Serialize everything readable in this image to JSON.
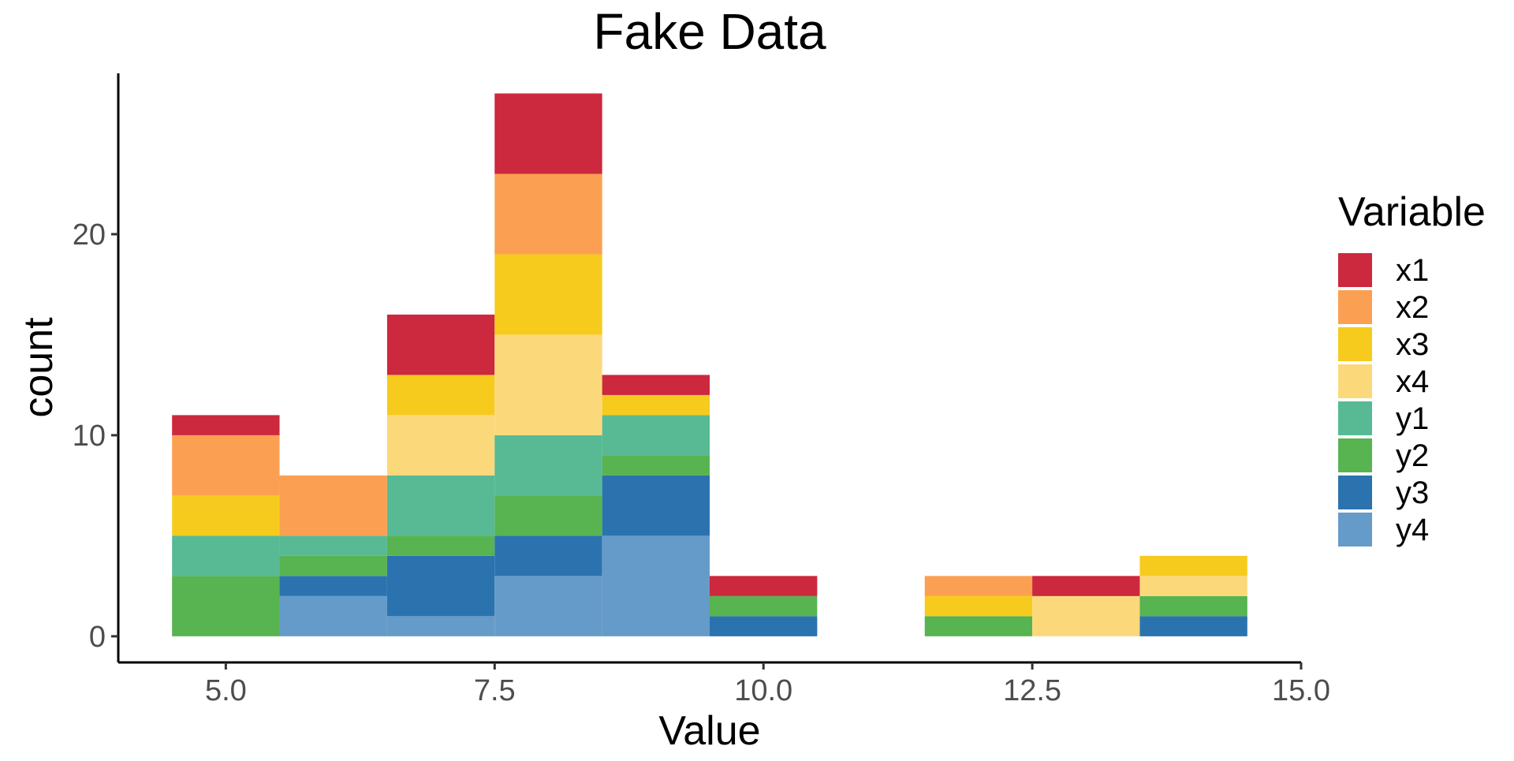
{
  "chart_data": {
    "type": "bar",
    "stacked": true,
    "title": "Fake Data",
    "xlabel": "Value",
    "ylabel": "count",
    "xlim": [
      4,
      15
    ],
    "ylim": [
      -1.3,
      28
    ],
    "bin_width": 1,
    "x_ticks": [
      5.0,
      7.5,
      10.0,
      12.5,
      15.0
    ],
    "x_tick_labels": [
      "5.0",
      "7.5",
      "10.0",
      "12.5",
      "15.0"
    ],
    "y_ticks": [
      0,
      10,
      20
    ],
    "y_tick_labels": [
      "0",
      "10",
      "20"
    ],
    "grid": false,
    "legend": {
      "title": "Variable",
      "position": "right"
    },
    "x": [
      5,
      6,
      7,
      8,
      9,
      10,
      11,
      12,
      13,
      14
    ],
    "series": [
      {
        "name": "y4",
        "color": "#659bc9",
        "values": [
          0,
          2,
          1,
          3,
          5,
          0,
          0,
          0,
          0,
          0
        ]
      },
      {
        "name": "y3",
        "color": "#2b73af",
        "values": [
          0,
          1,
          3,
          2,
          3,
          1,
          0,
          0,
          0,
          1
        ]
      },
      {
        "name": "y2",
        "color": "#58b351",
        "values": [
          3,
          1,
          1,
          2,
          1,
          1,
          0,
          1,
          0,
          1
        ]
      },
      {
        "name": "y1",
        "color": "#57ba95",
        "values": [
          2,
          1,
          3,
          3,
          2,
          0,
          0,
          0,
          0,
          0
        ]
      },
      {
        "name": "x4",
        "color": "#fbd97b",
        "values": [
          0,
          0,
          3,
          5,
          0,
          0,
          0,
          0,
          2,
          1
        ]
      },
      {
        "name": "x3",
        "color": "#f6cb1e",
        "values": [
          2,
          0,
          2,
          4,
          1,
          0,
          0,
          1,
          0,
          1
        ]
      },
      {
        "name": "x2",
        "color": "#fba052",
        "values": [
          3,
          3,
          0,
          4,
          0,
          0,
          0,
          1,
          0,
          0
        ]
      },
      {
        "name": "x1",
        "color": "#cc283e",
        "values": [
          1,
          0,
          3,
          4,
          1,
          1,
          0,
          0,
          1,
          0
        ]
      }
    ],
    "legend_order": [
      "x1",
      "x2",
      "x3",
      "x4",
      "y1",
      "y2",
      "y3",
      "y4"
    ]
  }
}
